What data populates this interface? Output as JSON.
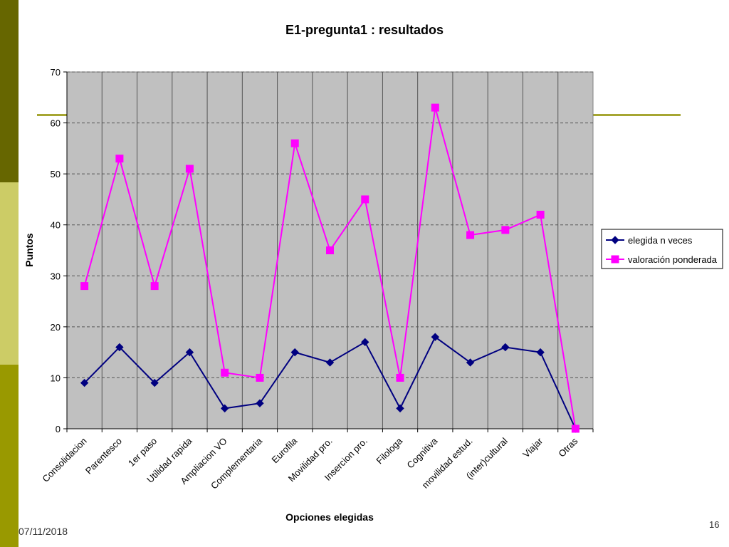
{
  "footer": {
    "date": "07/11/2018",
    "page_number": "16"
  },
  "colors": {
    "series1": "#000080",
    "series2": "#ff00ff",
    "plot_bg": "#c0c0c0",
    "accent": "#a6a632"
  },
  "chart_data": {
    "type": "line",
    "title": "E1-pregunta1 : resultados",
    "xlabel": "Opciones elegidas",
    "ylabel": "Puntos",
    "ylim": [
      0,
      70
    ],
    "yticks": [
      0,
      10,
      20,
      30,
      40,
      50,
      60,
      70
    ],
    "grid": true,
    "legend_position": "right",
    "categories": [
      "Consolidacion",
      "Parentesco",
      "1er paso",
      "Utilidad rapida",
      "Ampliacion VO",
      "Complementaria",
      "Eurofila",
      "Movilidad pro.",
      "Insercion pro.",
      "Filologa",
      "Cognitiva",
      "movilidad estud.",
      "(inter)cultural",
      "Viajar",
      "Otras"
    ],
    "series": [
      {
        "name": "elegida n veces",
        "marker": "diamond",
        "color": "#000080",
        "values": [
          9,
          16,
          9,
          15,
          4,
          5,
          15,
          13,
          17,
          4,
          18,
          13,
          16,
          15,
          0
        ]
      },
      {
        "name": "valoración ponderada",
        "marker": "square",
        "color": "#ff00ff",
        "values": [
          28,
          53,
          28,
          51,
          11,
          10,
          56,
          35,
          45,
          10,
          63,
          38,
          39,
          42,
          0
        ]
      }
    ]
  }
}
